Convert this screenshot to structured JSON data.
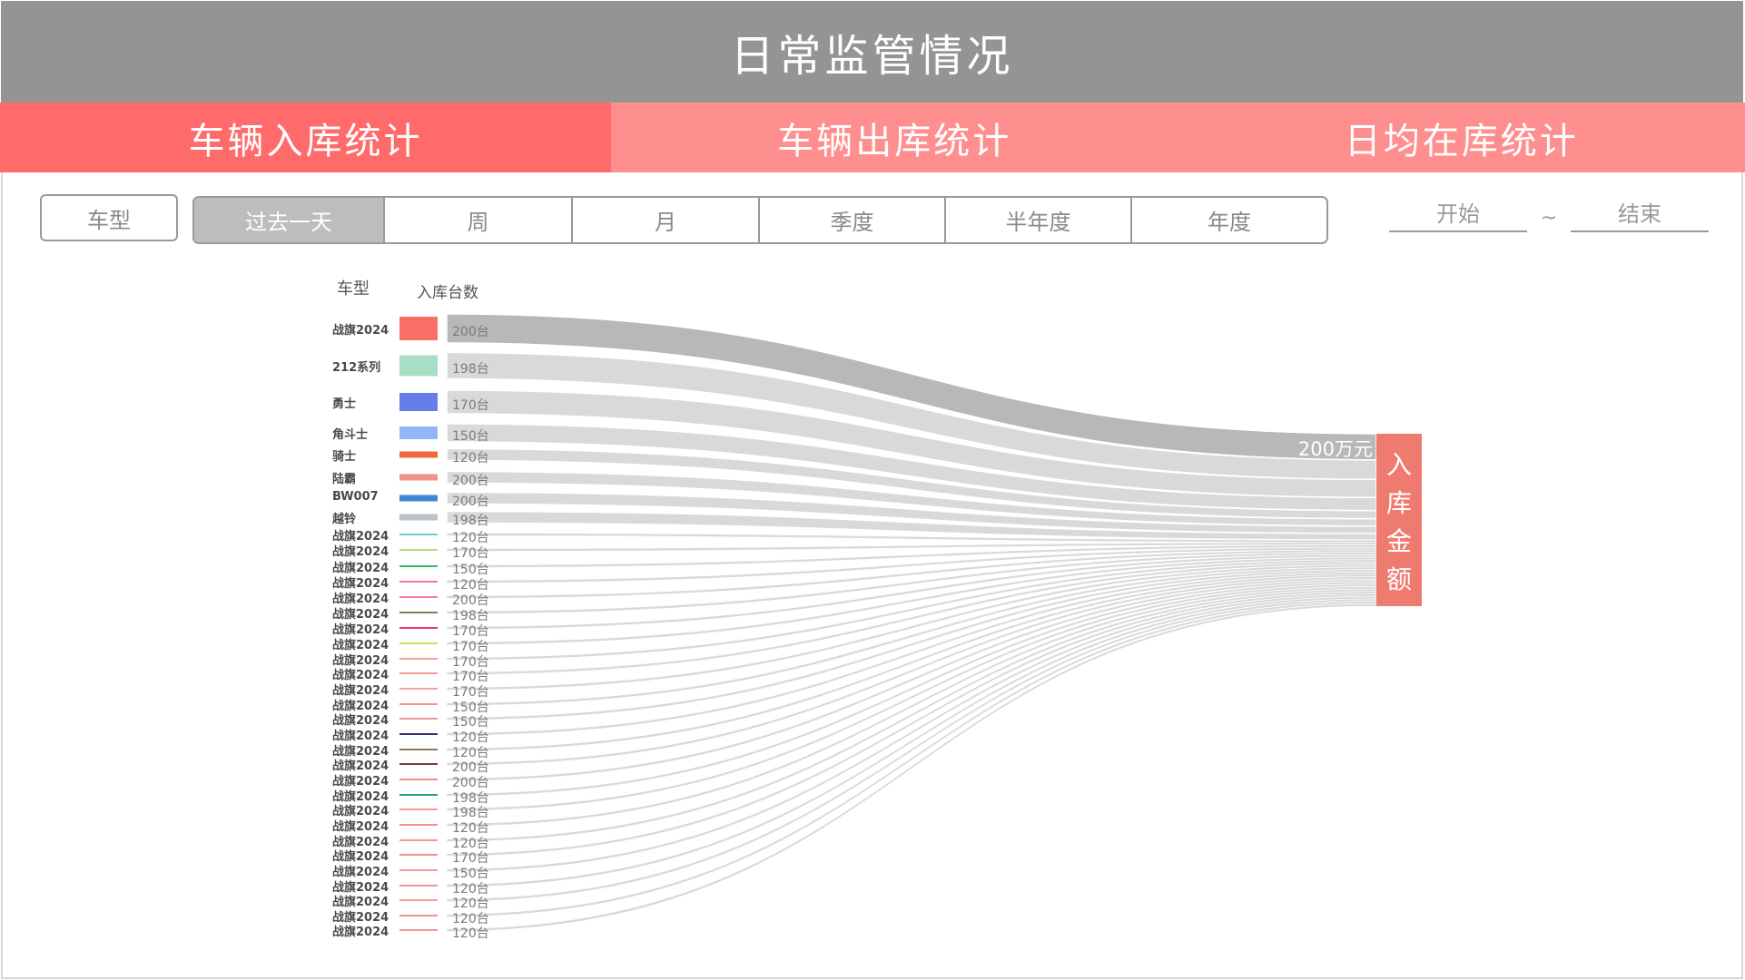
{
  "header": {
    "title": "日常监管情况"
  },
  "tabs": [
    {
      "label": "车辆入库统计",
      "active": true
    },
    {
      "label": "车辆出库统计",
      "active": false
    },
    {
      "label": "日均在库统计",
      "active": false
    }
  ],
  "filters": {
    "type_label": "车型",
    "periods": [
      {
        "label": "过去一天",
        "selected": true
      },
      {
        "label": "周",
        "selected": false
      },
      {
        "label": "月",
        "selected": false
      },
      {
        "label": "季度",
        "selected": false
      },
      {
        "label": "半年度",
        "selected": false
      },
      {
        "label": "年度",
        "selected": false
      }
    ],
    "start_placeholder": "开始",
    "separator": "~",
    "end_placeholder": "结束"
  },
  "chart_data": {
    "type": "sankey",
    "columns": {
      "type_header": "车型",
      "count_header": "入库台数"
    },
    "target": {
      "label": "入库金额",
      "chars": [
        "入",
        "库",
        "金",
        "额"
      ],
      "value": "200万元",
      "color": "#ef7b70"
    },
    "rows": [
      {
        "name": "战旗2024",
        "count": "200台",
        "color": "#f86f66"
      },
      {
        "name": "212系列",
        "count": "198台",
        "color": "#a6dfc5"
      },
      {
        "name": "勇士",
        "count": "170台",
        "color": "#667eea"
      },
      {
        "name": "角斗士",
        "count": "150台",
        "color": "#8fb6f5"
      },
      {
        "name": "骑士",
        "count": "120台",
        "color": "#ee6a3c"
      },
      {
        "name": "陆霸",
        "count": "200台",
        "color": "#ef928a"
      },
      {
        "name": "BW007",
        "count": "200台",
        "color": "#3e87d3"
      },
      {
        "name": "越铃",
        "count": "198台",
        "color": "#b9c2c6"
      },
      {
        "name": "战旗2024",
        "count": "120台",
        "color": "#6ccfd3"
      },
      {
        "name": "战旗2024",
        "count": "170台",
        "color": "#b4d98a"
      },
      {
        "name": "战旗2024",
        "count": "150台",
        "color": "#34b86a"
      },
      {
        "name": "战旗2024",
        "count": "120台",
        "color": "#f2789e"
      },
      {
        "name": "战旗2024",
        "count": "200台",
        "color": "#f27fa3"
      },
      {
        "name": "战旗2024",
        "count": "198台",
        "color": "#8a7a5a"
      },
      {
        "name": "战旗2024",
        "count": "170台",
        "color": "#e8356e"
      },
      {
        "name": "战旗2024",
        "count": "170台",
        "color": "#c7e05a"
      },
      {
        "name": "战旗2024",
        "count": "170台",
        "color": "#f5a0a0"
      },
      {
        "name": "战旗2024",
        "count": "170台",
        "color": "#f59a9a"
      },
      {
        "name": "战旗2024",
        "count": "170台",
        "color": "#f5a3a0"
      },
      {
        "name": "战旗2024",
        "count": "150台",
        "color": "#f59292"
      },
      {
        "name": "战旗2024",
        "count": "150台",
        "color": "#f59595"
      },
      {
        "name": "战旗2024",
        "count": "120台",
        "color": "#2c3468"
      },
      {
        "name": "战旗2024",
        "count": "120台",
        "color": "#8a7a5e"
      },
      {
        "name": "战旗2024",
        "count": "200台",
        "color": "#7a3a3a"
      },
      {
        "name": "战旗2024",
        "count": "200台",
        "color": "#f58c8c"
      },
      {
        "name": "战旗2024",
        "count": "198台",
        "color": "#2aa07a"
      },
      {
        "name": "战旗2024",
        "count": "198台",
        "color": "#f59a9a"
      },
      {
        "name": "战旗2024",
        "count": "120台",
        "color": "#f59090"
      },
      {
        "name": "战旗2024",
        "count": "120台",
        "color": "#f59696"
      },
      {
        "name": "战旗2024",
        "count": "170台",
        "color": "#f58f8f"
      },
      {
        "name": "战旗2024",
        "count": "150台",
        "color": "#f59999"
      },
      {
        "name": "战旗2024",
        "count": "120台",
        "color": "#f59393"
      },
      {
        "name": "战旗2024",
        "count": "120台",
        "color": "#f59c9c"
      },
      {
        "name": "战旗2024",
        "count": "120台",
        "color": "#f58d8d"
      },
      {
        "name": "战旗2024",
        "count": "120台",
        "color": "#f59797"
      }
    ]
  }
}
